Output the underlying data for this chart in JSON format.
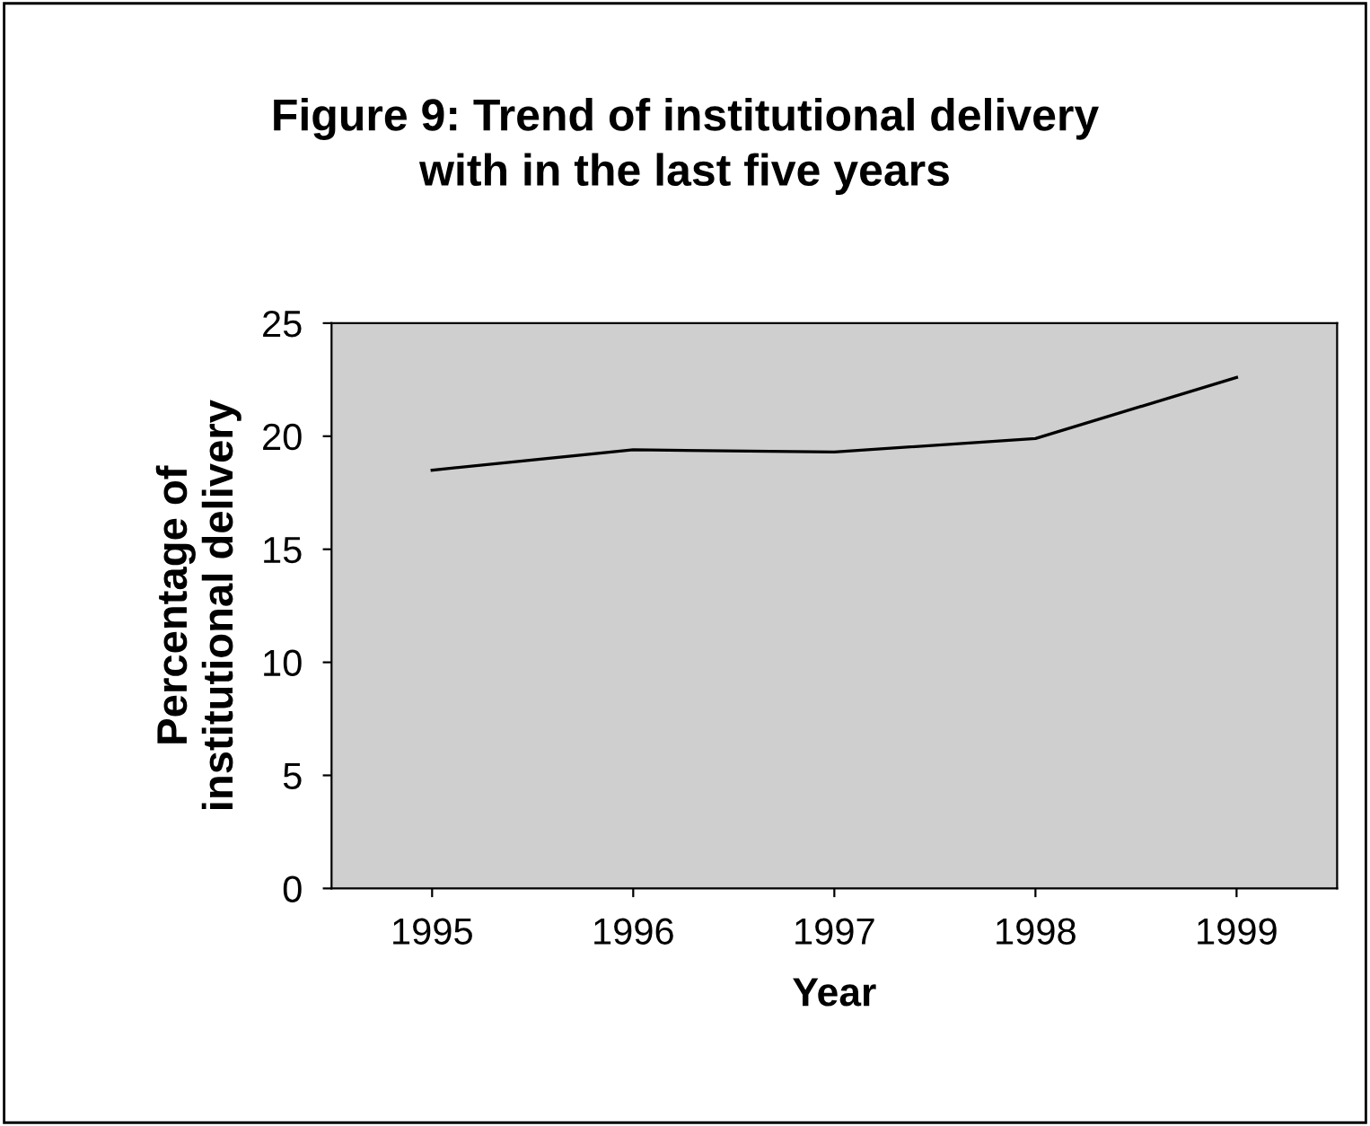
{
  "chart_data": {
    "type": "line",
    "title": "Figure 9: Trend of institutional delivery\nwith in the last five years",
    "xlabel": "Year",
    "ylabel": "Percentage of\ninstitutional delivery",
    "categories": [
      "1995",
      "1996",
      "1997",
      "1998",
      "1999"
    ],
    "series": [
      {
        "color": "#000000",
        "values": [
          18.5,
          19.4,
          19.3,
          19.9,
          22.6
        ]
      }
    ],
    "ylim": [
      0,
      25
    ],
    "yticks": [
      0,
      5,
      10,
      15,
      20,
      25
    ],
    "grid": false,
    "legend": false,
    "marker": "none",
    "line_style": "solid"
  }
}
